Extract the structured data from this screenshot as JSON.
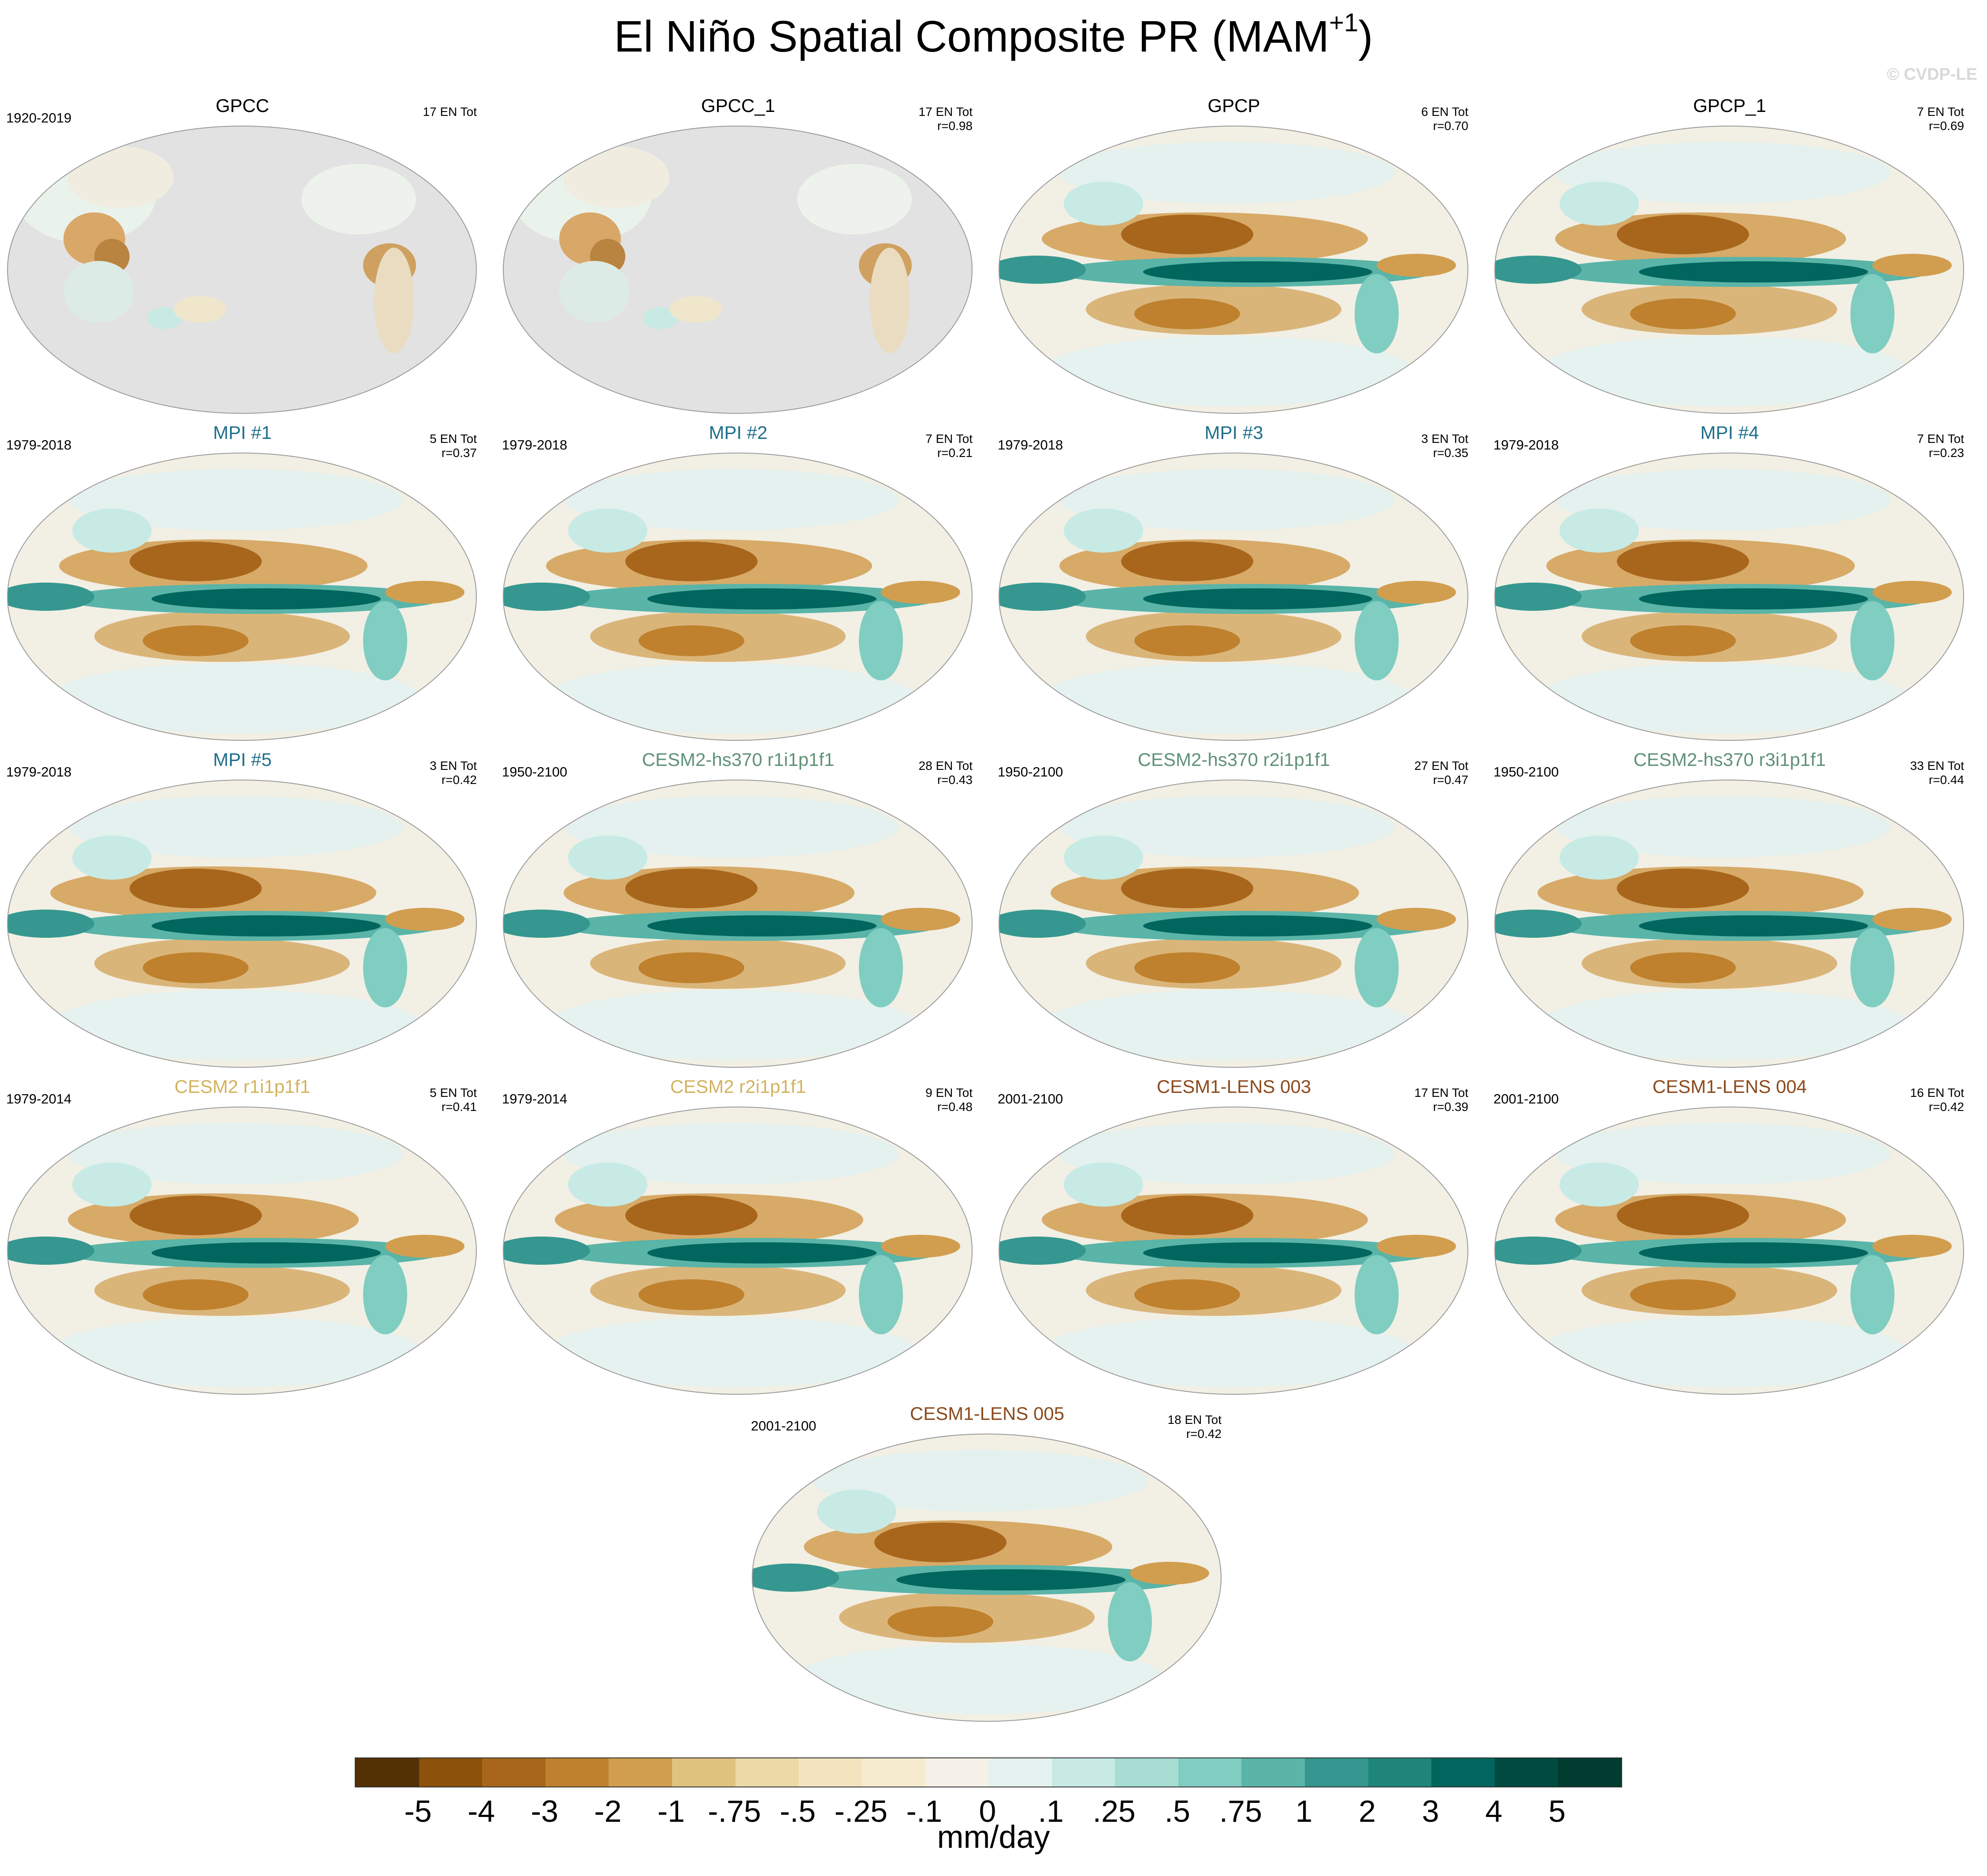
{
  "figure": {
    "title": "El Niño Spatial Composite PR (MAM",
    "title_sup": "+1",
    "title_close": ")",
    "watermark": "© CVDP-LE"
  },
  "panels": [
    {
      "title": "GPCC",
      "title_color": "#000000",
      "years": "1920-2019",
      "count": "17 EN Tot",
      "r": "",
      "pattern": "obs"
    },
    {
      "title": "GPCC_1",
      "title_color": "#000000",
      "years": "",
      "count": "17 EN Tot",
      "r": "r=0.98",
      "pattern": "obs"
    },
    {
      "title": "GPCP",
      "title_color": "#000000",
      "years": "",
      "count": "6 EN Tot",
      "r": "r=0.70",
      "pattern": "model"
    },
    {
      "title": "GPCP_1",
      "title_color": "#000000",
      "years": "",
      "count": "7 EN Tot",
      "r": "r=0.69",
      "pattern": "model"
    },
    {
      "title": "MPI #1",
      "title_color": "#1f6f8b",
      "years": "1979-2018",
      "count": "5 EN Tot",
      "r": "r=0.37",
      "pattern": "model"
    },
    {
      "title": "MPI #2",
      "title_color": "#1f6f8b",
      "years": "1979-2018",
      "count": "7 EN Tot",
      "r": "r=0.21",
      "pattern": "model"
    },
    {
      "title": "MPI #3",
      "title_color": "#1f6f8b",
      "years": "1979-2018",
      "count": "3 EN Tot",
      "r": "r=0.35",
      "pattern": "model"
    },
    {
      "title": "MPI #4",
      "title_color": "#1f6f8b",
      "years": "1979-2018",
      "count": "7 EN Tot",
      "r": "r=0.23",
      "pattern": "model"
    },
    {
      "title": "MPI #5",
      "title_color": "#1f6f8b",
      "years": "1979-2018",
      "count": "3 EN Tot",
      "r": "r=0.42",
      "pattern": "model"
    },
    {
      "title": "CESM2-hs370 r1i1p1f1",
      "title_color": "#5f9275",
      "years": "1950-2100",
      "count": "28 EN Tot",
      "r": "r=0.43",
      "pattern": "model"
    },
    {
      "title": "CESM2-hs370 r2i1p1f1",
      "title_color": "#5f9275",
      "years": "1950-2100",
      "count": "27 EN Tot",
      "r": "r=0.47",
      "pattern": "model"
    },
    {
      "title": "CESM2-hs370 r3i1p1f1",
      "title_color": "#5f9275",
      "years": "1950-2100",
      "count": "33 EN Tot",
      "r": "r=0.44",
      "pattern": "model"
    },
    {
      "title": "CESM2 r1i1p1f1",
      "title_color": "#d2b35e",
      "years": "1979-2014",
      "count": "5 EN Tot",
      "r": "r=0.41",
      "pattern": "model"
    },
    {
      "title": "CESM2 r2i1p1f1",
      "title_color": "#d2b35e",
      "years": "1979-2014",
      "count": "9 EN Tot",
      "r": "r=0.48",
      "pattern": "model"
    },
    {
      "title": "CESM1-LENS 003",
      "title_color": "#8c4a1c",
      "years": "2001-2100",
      "count": "17 EN Tot",
      "r": "r=0.39",
      "pattern": "model"
    },
    {
      "title": "CESM1-LENS 004",
      "title_color": "#8c4a1c",
      "years": "2001-2100",
      "count": "16 EN Tot",
      "r": "r=0.42",
      "pattern": "model"
    },
    {
      "title": "CESM1-LENS 005",
      "title_color": "#8c4a1c",
      "years": "2001-2100",
      "count": "18 EN Tot",
      "r": "r=0.42",
      "pattern": "model"
    }
  ],
  "colorbar": {
    "colors": [
      "#543005",
      "#8c510a",
      "#a8661c",
      "#bf812d",
      "#d19e4f",
      "#dfc27d",
      "#ecd9a6",
      "#f3e4bf",
      "#f6ebcf",
      "#f5f1e8",
      "#e5f2ef",
      "#c7eae5",
      "#a6dcd1",
      "#80cdc1",
      "#5ab4a8",
      "#35978f",
      "#1f857b",
      "#01665e",
      "#014a40",
      "#003c30"
    ],
    "labels": [
      "-5",
      "-4",
      "-3",
      "-2",
      "-1",
      "-.75",
      "-.5",
      "-.25",
      "-.1",
      "0",
      ".1",
      ".25",
      ".5",
      ".75",
      "1",
      "2",
      "3",
      "4",
      "5"
    ],
    "units": "mm/day"
  }
}
